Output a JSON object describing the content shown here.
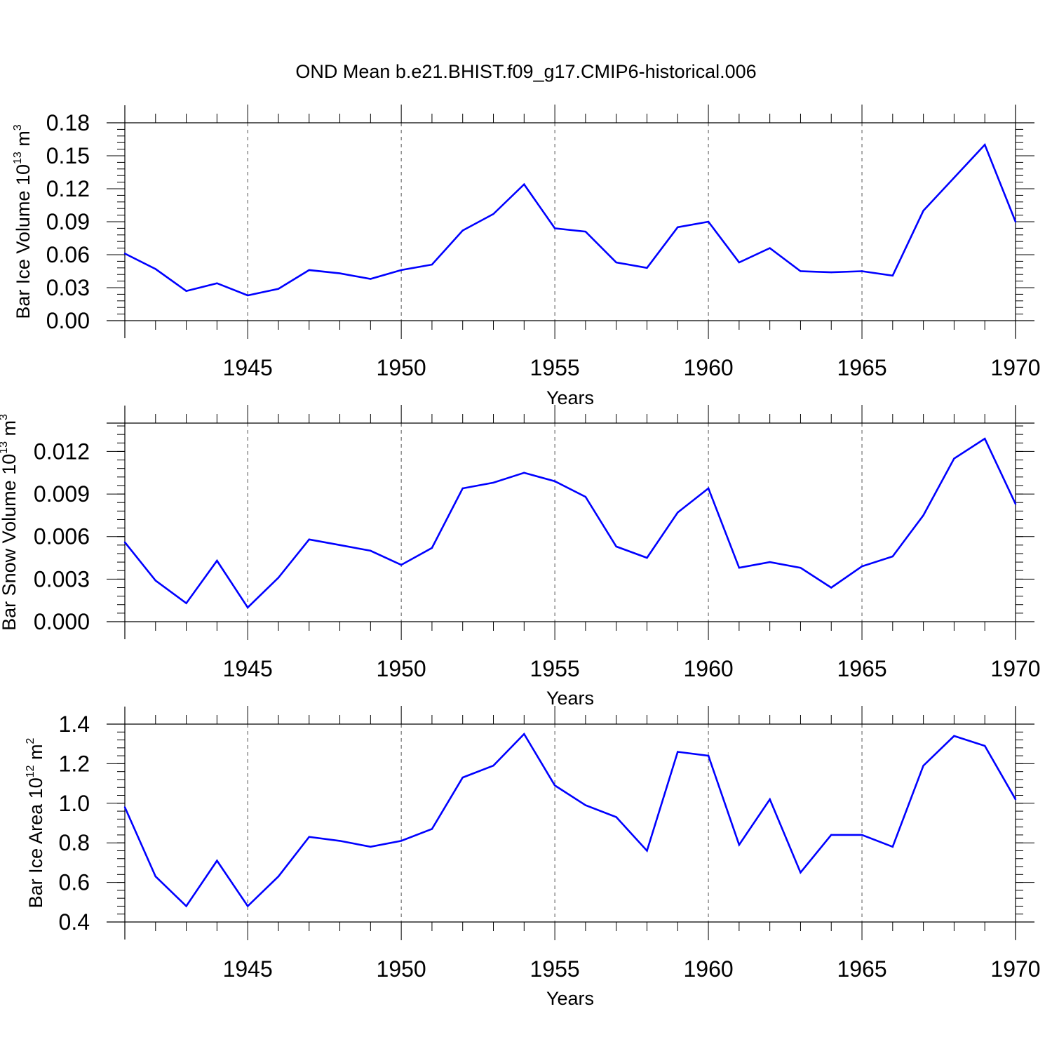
{
  "title": "OND Mean b.e21.BHIST.f09_g17.CMIP6-historical.006",
  "colors": {
    "line": "#0000ff",
    "axis": "#000000",
    "grid": "#555555"
  },
  "chart_data": [
    {
      "type": "line",
      "xlabel": "Years",
      "ylabel_parts": [
        "Bar Ice Volume 10",
        "13",
        " m",
        "3"
      ],
      "xlim": [
        1941,
        1970
      ],
      "ylim": [
        0,
        0.18
      ],
      "yticks": [
        0,
        0.03,
        0.06,
        0.09,
        0.12,
        0.15,
        0.18
      ],
      "ytick_labels": [
        "0.00",
        "0.03",
        "0.06",
        "0.09",
        "0.12",
        "0.15",
        "0.18"
      ],
      "xticks": [
        1945,
        1950,
        1955,
        1960,
        1965,
        1970
      ],
      "xtick_labels": [
        "1945",
        "1950",
        "1955",
        "1960",
        "1965",
        "1970"
      ],
      "grid": "vertical dashed at major x ticks",
      "x": [
        1941,
        1942,
        1943,
        1944,
        1945,
        1946,
        1947,
        1948,
        1949,
        1950,
        1951,
        1952,
        1953,
        1954,
        1955,
        1956,
        1957,
        1958,
        1959,
        1960,
        1961,
        1962,
        1963,
        1964,
        1965,
        1966,
        1967,
        1968,
        1969,
        1970
      ],
      "y": [
        0.061,
        0.047,
        0.027,
        0.034,
        0.023,
        0.029,
        0.046,
        0.043,
        0.038,
        0.046,
        0.051,
        0.082,
        0.097,
        0.124,
        0.084,
        0.081,
        0.053,
        0.048,
        0.085,
        0.09,
        0.053,
        0.066,
        0.045,
        0.044,
        0.045,
        0.041,
        0.1,
        0.13,
        0.16,
        0.09
      ]
    },
    {
      "type": "line",
      "xlabel": "Years",
      "ylabel_parts": [
        "Bar Snow Volume 10",
        "13",
        " m",
        "3"
      ],
      "xlim": [
        1941,
        1970
      ],
      "ylim": [
        0,
        0.014
      ],
      "yticks": [
        0,
        0.003,
        0.006,
        0.009,
        0.012
      ],
      "ytick_labels": [
        "0.000",
        "0.003",
        "0.006",
        "0.009",
        "0.012"
      ],
      "xticks": [
        1945,
        1950,
        1955,
        1960,
        1965,
        1970
      ],
      "xtick_labels": [
        "1945",
        "1950",
        "1955",
        "1960",
        "1965",
        "1970"
      ],
      "grid": "vertical dashed at major x ticks",
      "x": [
        1941,
        1942,
        1943,
        1944,
        1945,
        1946,
        1947,
        1948,
        1949,
        1950,
        1951,
        1952,
        1953,
        1954,
        1955,
        1956,
        1957,
        1958,
        1959,
        1960,
        1961,
        1962,
        1963,
        1964,
        1965,
        1966,
        1967,
        1968,
        1969,
        1970
      ],
      "y": [
        0.0056,
        0.0029,
        0.0013,
        0.0043,
        0.001,
        0.0031,
        0.0058,
        0.0054,
        0.005,
        0.004,
        0.0052,
        0.0094,
        0.0098,
        0.0105,
        0.0099,
        0.0088,
        0.0053,
        0.0045,
        0.0077,
        0.0094,
        0.0038,
        0.0042,
        0.0038,
        0.0024,
        0.0039,
        0.0046,
        0.0075,
        0.0115,
        0.0129,
        0.0083
      ]
    },
    {
      "type": "line",
      "xlabel": "Years",
      "ylabel_parts": [
        "Bar Ice Area 10",
        "12",
        " m",
        "2"
      ],
      "xlim": [
        1941,
        1970
      ],
      "ylim": [
        0.4,
        1.4
      ],
      "yticks": [
        0.4,
        0.6,
        0.8,
        1.0,
        1.2,
        1.4
      ],
      "ytick_labels": [
        "0.4",
        "0.6",
        "0.8",
        "1.0",
        "1.2",
        "1.4"
      ],
      "xticks": [
        1945,
        1950,
        1955,
        1960,
        1965,
        1970
      ],
      "xtick_labels": [
        "1945",
        "1950",
        "1955",
        "1960",
        "1965",
        "1970"
      ],
      "grid": "vertical dashed at major x ticks",
      "x": [
        1941,
        1942,
        1943,
        1944,
        1945,
        1946,
        1947,
        1948,
        1949,
        1950,
        1951,
        1952,
        1953,
        1954,
        1955,
        1956,
        1957,
        1958,
        1959,
        1960,
        1961,
        1962,
        1963,
        1964,
        1965,
        1966,
        1967,
        1968,
        1969,
        1970
      ],
      "y": [
        0.98,
        0.63,
        0.48,
        0.71,
        0.48,
        0.63,
        0.83,
        0.81,
        0.78,
        0.81,
        0.87,
        1.13,
        1.19,
        1.35,
        1.09,
        0.99,
        0.93,
        0.76,
        1.26,
        1.24,
        0.79,
        1.02,
        0.65,
        0.84,
        0.84,
        0.78,
        1.19,
        1.34,
        1.29,
        1.02
      ]
    }
  ]
}
